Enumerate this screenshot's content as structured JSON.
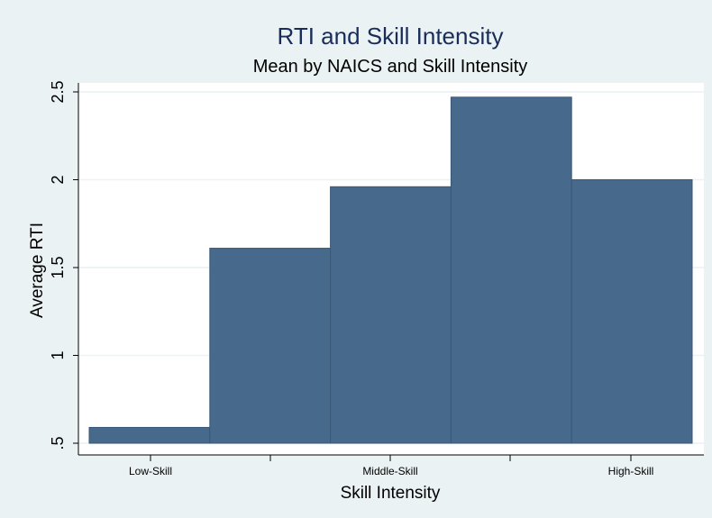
{
  "colors": {
    "outer_background": "#eaf2f3",
    "plot_background": "#ffffff",
    "bar_fill": "#476a8c",
    "bar_stroke": "#3a5878",
    "title": "#1a2d5a",
    "grid": "#eaf2f3"
  },
  "chart_data": {
    "type": "bar",
    "title": "RTI and Skill Intensity",
    "subtitle": "Mean by NAICS and Skill Intensity",
    "xlabel": "Skill Intensity",
    "ylabel": "Average RTI",
    "categories": [
      "",
      "",
      "",
      "",
      ""
    ],
    "values": [
      0.59,
      1.61,
      1.96,
      2.47,
      2.0
    ],
    "x_tick_labels": [
      "Low-Skill",
      "Middle-Skill",
      "High-Skill"
    ],
    "y_ticks": [
      0.5,
      1,
      1.5,
      2,
      2.5
    ],
    "y_tick_labels": [
      ".5",
      "1",
      "1.5",
      "2",
      "2.5"
    ],
    "ylim": [
      0.5,
      2.5
    ],
    "grid": true,
    "legend": "none"
  }
}
